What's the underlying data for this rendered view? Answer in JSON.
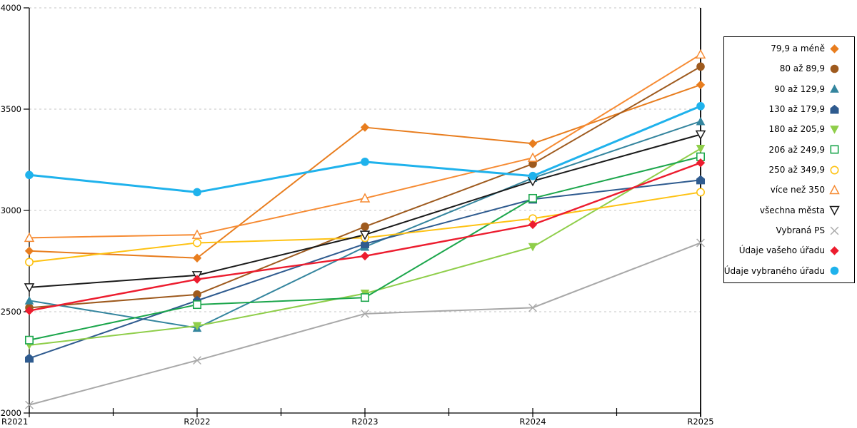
{
  "chart_data": {
    "type": "line",
    "title": "",
    "xlabel": "",
    "ylabel": "",
    "x": [
      "R2021",
      "R2022",
      "R2023",
      "R2024",
      "R2025"
    ],
    "ylim": [
      2000,
      4000
    ],
    "y_ticks": [
      2000,
      2500,
      3000,
      3500,
      4000
    ],
    "grid": "horizontal-dashed",
    "grid_color": "#c6c6c6",
    "axis_color": "#000000",
    "legend_position": "right-outside",
    "series": [
      {
        "id": "79-9-a-mene",
        "name": "79,9 a méně",
        "color": "#e87d1e",
        "marker": "diamond",
        "line_width": 2,
        "values": [
          2800,
          2765,
          3410,
          3330,
          3620
        ]
      },
      {
        "id": "80-az-89-9",
        "name": "80 až 89,9",
        "color": "#9e5a1e",
        "marker": "circle",
        "line_width": 2,
        "values": [
          2520,
          2585,
          2920,
          3230,
          3710
        ]
      },
      {
        "id": "90-az-129-9",
        "name": "90 až 129,9",
        "color": "#34859e",
        "marker": "triangle-up",
        "line_width": 2,
        "values": [
          2555,
          2420,
          2820,
          3160,
          3440
        ]
      },
      {
        "id": "130-az-179-9",
        "name": "130 až 179,9",
        "color": "#2f5b8f",
        "marker": "pentagon",
        "line_width": 2,
        "values": [
          2270,
          2555,
          2835,
          3055,
          3150
        ]
      },
      {
        "id": "180-az-205-9",
        "name": "180 až 205,9",
        "color": "#8fce4a",
        "marker": "triangle-down",
        "line_width": 2,
        "values": [
          2335,
          2430,
          2590,
          2820,
          3305
        ]
      },
      {
        "id": "206-az-249-9",
        "name": "206 až 249,9",
        "color": "#1ca64c",
        "marker": "square-open",
        "line_width": 2,
        "values": [
          2360,
          2535,
          2570,
          3060,
          3265
        ]
      },
      {
        "id": "250-az-349-9",
        "name": "250 až 349,9",
        "color": "#fec213",
        "marker": "circle-open",
        "line_width": 2,
        "values": [
          2745,
          2840,
          2865,
          2960,
          3090
        ]
      },
      {
        "id": "vice-nez-350",
        "name": "více než 350",
        "color": "#f68b33",
        "marker": "triangle-up-open",
        "line_width": 2,
        "values": [
          2865,
          2880,
          3060,
          3260,
          3770
        ]
      },
      {
        "id": "vsechna-mesta",
        "name": "všechna města",
        "color": "#1a1a1a",
        "marker": "triangle-down-open",
        "line_width": 2,
        "values": [
          2620,
          2680,
          2880,
          3145,
          3375
        ]
      },
      {
        "id": "vybrana-ps",
        "name": "Vybraná PS",
        "color": "#a8a8a8",
        "marker": "x",
        "line_width": 2,
        "values": [
          2040,
          2260,
          2490,
          2520,
          2840
        ]
      },
      {
        "id": "udaje-vaseho-uradu",
        "name": "Údaje vašeho úřadu",
        "color": "#ec1c2e",
        "marker": "diamond",
        "line_width": 2.4,
        "values": [
          2505,
          2660,
          2775,
          2930,
          3235
        ]
      },
      {
        "id": "udaje-vybraneho-uradu",
        "name": "Údaje vybraného úřadu",
        "color": "#1fb2ec",
        "marker": "circle",
        "line_width": 3,
        "values": [
          3175,
          3090,
          3240,
          3170,
          3515
        ]
      }
    ]
  }
}
